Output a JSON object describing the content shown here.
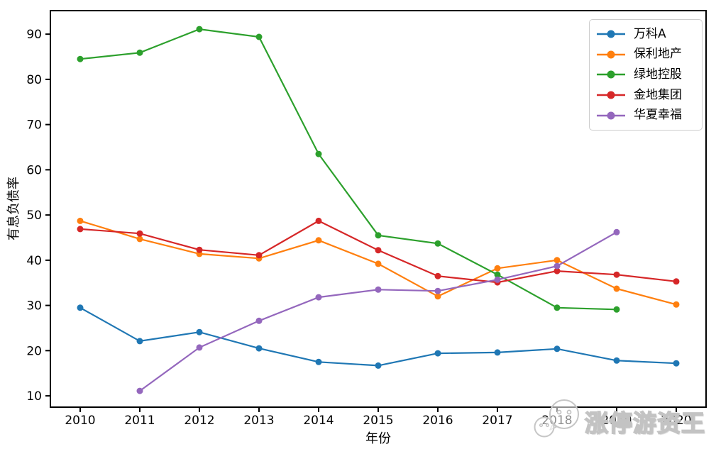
{
  "figure": {
    "background": "#ffffff",
    "watermark": {
      "icon": "wechat-chat-bubbles-icon",
      "text": "涨停游资王"
    }
  },
  "chart_data": {
    "type": "line",
    "title": "",
    "xlabel": "年份",
    "ylabel": "有息负债率",
    "x": [
      2010,
      2011,
      2012,
      2013,
      2014,
      2015,
      2016,
      2017,
      2018,
      2019,
      2020
    ],
    "xlim": [
      2009.5,
      2020.5
    ],
    "ylim": [
      7.5,
      95.2
    ],
    "yticks": [
      10,
      20,
      30,
      40,
      50,
      60,
      70,
      80,
      90
    ],
    "grid": false,
    "legend_position": "upper-right",
    "marker": "circle",
    "series": [
      {
        "id": "wanke-a",
        "name": "万科A",
        "color": "#1f77b4",
        "values": [
          29.5,
          22.1,
          24.1,
          20.5,
          17.5,
          16.7,
          19.4,
          19.6,
          20.4,
          17.8,
          17.2
        ]
      },
      {
        "id": "baoli-dichan",
        "name": "保利地产",
        "color": "#ff7f0e",
        "values": [
          48.7,
          44.7,
          41.4,
          40.4,
          44.4,
          39.2,
          32.0,
          38.2,
          40.0,
          33.7,
          30.2
        ]
      },
      {
        "id": "lvdi-konggu",
        "name": "绿地控股",
        "color": "#2ca02c",
        "values": [
          84.5,
          85.9,
          91.1,
          89.4,
          63.5,
          45.5,
          43.7,
          36.8,
          29.5,
          29.1,
          null
        ]
      },
      {
        "id": "jindi-jituan",
        "name": "金地集团",
        "color": "#d62728",
        "values": [
          46.9,
          45.9,
          42.3,
          41.1,
          48.7,
          42.2,
          36.5,
          35.1,
          37.6,
          36.8,
          35.3
        ]
      },
      {
        "id": "huaxia-xingfu",
        "name": "华夏幸福",
        "color": "#9467bd",
        "values": [
          null,
          11.1,
          20.7,
          26.6,
          31.8,
          33.5,
          33.2,
          35.7,
          38.7,
          46.2,
          null
        ]
      }
    ]
  }
}
